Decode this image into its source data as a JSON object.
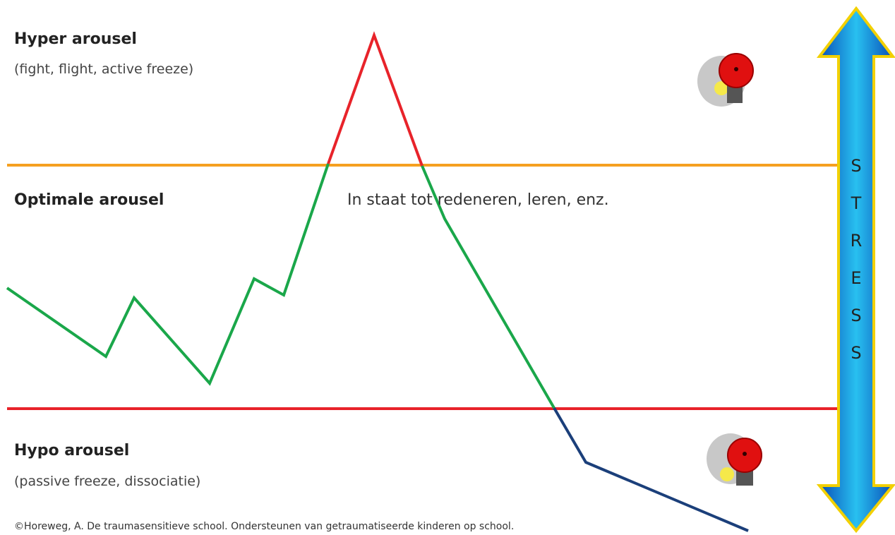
{
  "zones": {
    "hyper": {
      "title": "Hyper arousel",
      "subtitle": "(fight, flight, active freeze)"
    },
    "optimal": {
      "title": "Optimale arousel",
      "note": "In staat tot redeneren, leren, enz."
    },
    "hypo": {
      "title": "Hypo arousel",
      "subtitle": "(passive freeze, dissociatie)"
    }
  },
  "stress_letters": [
    "S",
    "T",
    "R",
    "E",
    "S",
    "S"
  ],
  "credit": "©Horeweg, A. De traumasensitieve school. Ondersteunen van getraumatiseerde kinderen op school."
}
